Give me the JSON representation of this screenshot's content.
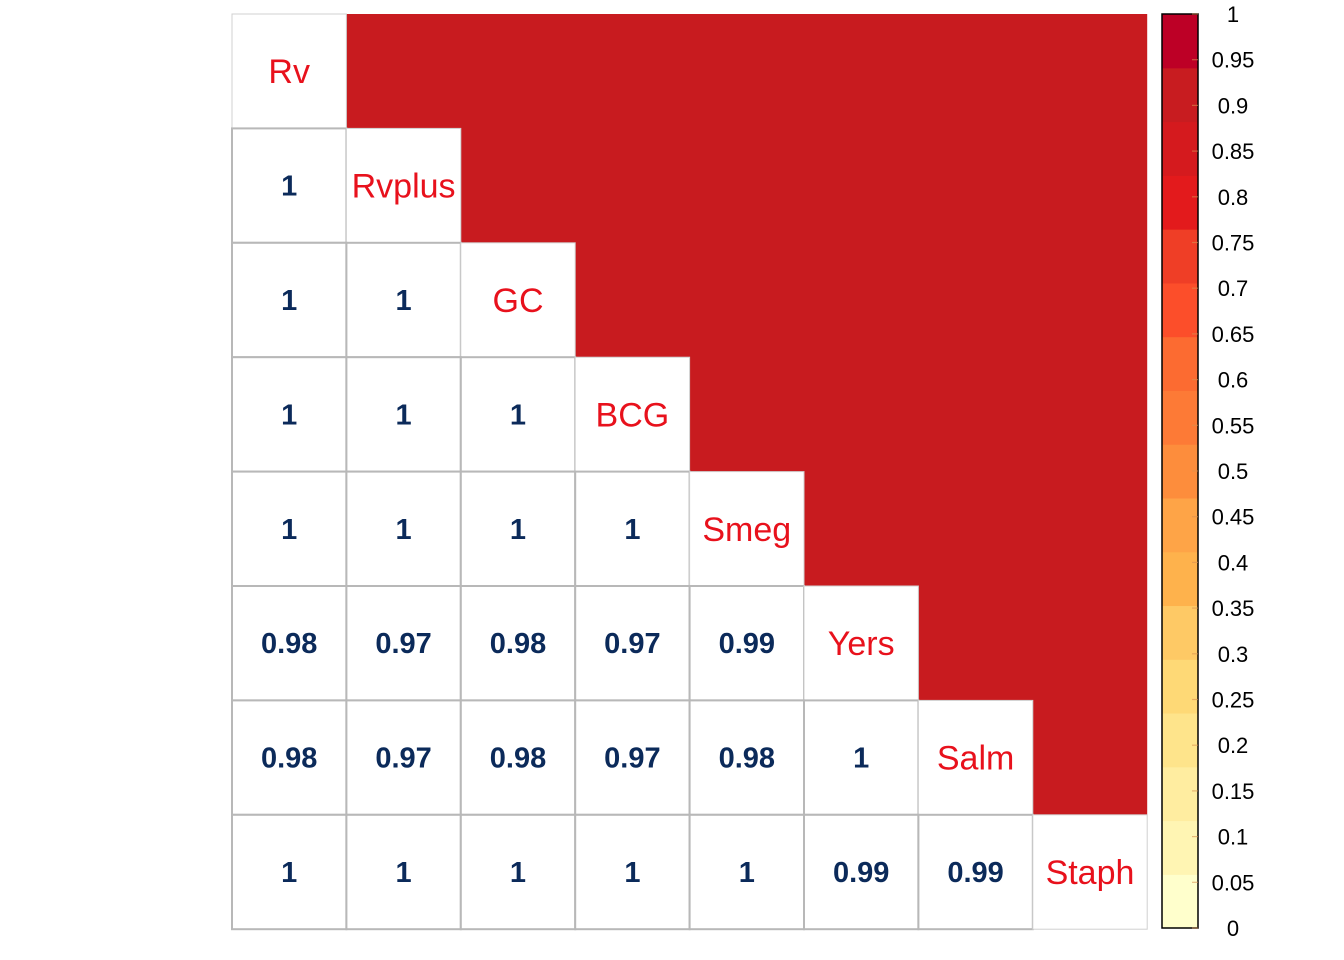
{
  "chart_data": {
    "type": "heatmap",
    "layout": "lower-triangle correlation matrix, upper triangle filled with color",
    "variables": [
      "Rv",
      "Rvplus",
      "GC",
      "BCG",
      "Smeg",
      "Yers",
      "Salm",
      "Staph"
    ],
    "lower_triangle": [
      [],
      [
        "1"
      ],
      [
        "1",
        "1"
      ],
      [
        "1",
        "1",
        "1"
      ],
      [
        "1",
        "1",
        "1",
        "1"
      ],
      [
        "0.98",
        "0.97",
        "0.98",
        "0.97",
        "0.99"
      ],
      [
        "0.98",
        "0.97",
        "0.98",
        "0.97",
        "0.98",
        "1"
      ],
      [
        "1",
        "1",
        "1",
        "1",
        "1",
        "0.99",
        "0.99"
      ]
    ],
    "upper_triangle_fill_value": 1,
    "colorbar": {
      "min": 0,
      "max": 1,
      "ticks": [
        "0",
        "0.05",
        "0.1",
        "0.15",
        "0.2",
        "0.25",
        "0.3",
        "0.35",
        "0.4",
        "0.45",
        "0.5",
        "0.55",
        "0.6",
        "0.65",
        "0.7",
        "0.75",
        "0.8",
        "0.85",
        "0.9",
        "0.95",
        "1"
      ],
      "colors": [
        "#ffffcc",
        "#fff5b3",
        "#ffeda0",
        "#fee48b",
        "#fed976",
        "#fec965",
        "#feb24c",
        "#fea447",
        "#fd8d3c",
        "#fd7a36",
        "#fc6b31",
        "#fc4e2a",
        "#ef3e26",
        "#e31a1c",
        "#d51a1e",
        "#c81c20",
        "#bd0026"
      ]
    },
    "colors": {
      "upper_fill": "#c81b1f",
      "label_color": "#e8111c",
      "value_color": "#0b2a5a",
      "grid_color": "#b8b8b8"
    }
  }
}
